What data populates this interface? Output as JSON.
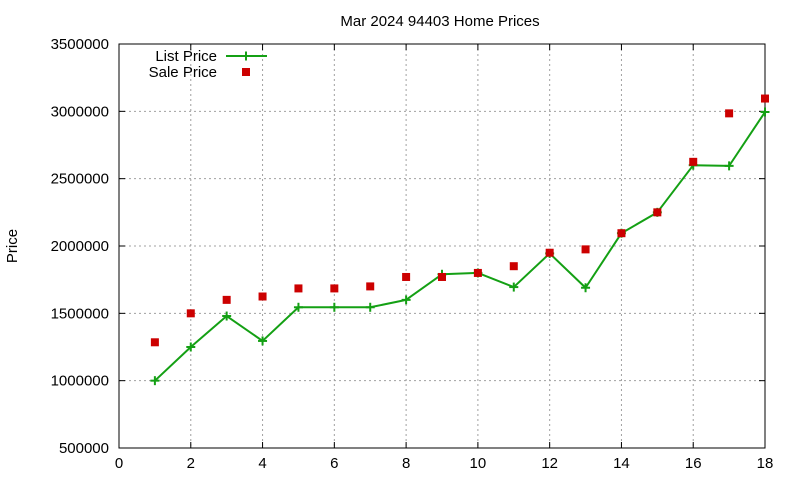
{
  "chart_data": {
    "type": "line",
    "title": "Mar 2024 94403 Home Prices",
    "xlabel": "",
    "ylabel": "Price",
    "xlim": [
      0,
      18
    ],
    "ylim": [
      500000,
      3500000
    ],
    "x_ticks": [
      "0",
      "2",
      "4",
      "6",
      "8",
      "10",
      "12",
      "14",
      "16",
      "18"
    ],
    "y_ticks": [
      "500000",
      "1000000",
      "1500000",
      "2000000",
      "2500000",
      "3000000",
      "3500000"
    ],
    "grid": true,
    "legend_position": "top-left",
    "series": [
      {
        "name": "List Price",
        "style": "linespoints",
        "marker": "plus",
        "color": "#14a014",
        "x": [
          1,
          2,
          3,
          4,
          5,
          6,
          7,
          8,
          9,
          10,
          11,
          12,
          13,
          14,
          15,
          16,
          17,
          18
        ],
        "values": [
          1000000,
          1250000,
          1480000,
          1295000,
          1545000,
          1545000,
          1545000,
          1600000,
          1790000,
          1800000,
          1695000,
          1945000,
          1690000,
          2095000,
          2250000,
          2600000,
          2595000,
          2995000
        ]
      },
      {
        "name": "Sale Price",
        "style": "points",
        "marker": "square",
        "color": "#cc0000",
        "x": [
          1,
          2,
          3,
          4,
          5,
          6,
          7,
          8,
          9,
          10,
          11,
          12,
          13,
          14,
          15,
          16,
          17,
          18
        ],
        "values": [
          1285000,
          1500000,
          1600000,
          1625000,
          1685000,
          1685000,
          1700000,
          1770000,
          1770000,
          1800000,
          1850000,
          1950000,
          1975000,
          2095000,
          2250000,
          2625000,
          2985000,
          3095000
        ]
      }
    ]
  }
}
